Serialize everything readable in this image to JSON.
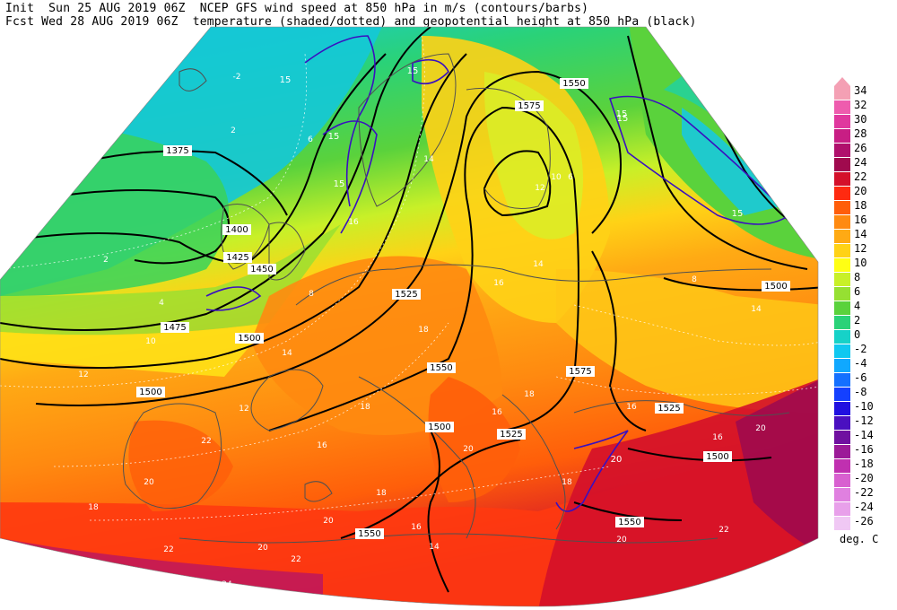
{
  "header": {
    "line1": "Init  Sun 25 AUG 2019 06Z  NCEP GFS wind speed at 850 hPa in m/s (contours/barbs)",
    "line2": "Fcst Wed 28 AUG 2019 06Z  temperature (shaded/dotted) and geopotential height at 850 hPa (black)"
  },
  "legend": {
    "units": "deg. C",
    "levels": [
      {
        "v": "34",
        "c": "#f4a0b4"
      },
      {
        "v": "32",
        "c": "#ee5cae"
      },
      {
        "v": "30",
        "c": "#e0389e"
      },
      {
        "v": "28",
        "c": "#c81e84"
      },
      {
        "v": "26",
        "c": "#b0106c"
      },
      {
        "v": "24",
        "c": "#a00a4e"
      },
      {
        "v": "22",
        "c": "#d4102a"
      },
      {
        "v": "20",
        "c": "#ff2a10"
      },
      {
        "v": "18",
        "c": "#ff5e0a"
      },
      {
        "v": "16",
        "c": "#ff8a10"
      },
      {
        "v": "14",
        "c": "#ffaa14"
      },
      {
        "v": "12",
        "c": "#ffd216"
      },
      {
        "v": "10",
        "c": "#ffff14"
      },
      {
        "v": "8",
        "c": "#c8f028"
      },
      {
        "v": "6",
        "c": "#96e032"
      },
      {
        "v": "4",
        "c": "#5ad23c"
      },
      {
        "v": "2",
        "c": "#2ad278"
      },
      {
        "v": "0",
        "c": "#16d2c8"
      },
      {
        "v": "-2",
        "c": "#10c8f0"
      },
      {
        "v": "-4",
        "c": "#10a8ff"
      },
      {
        "v": "-6",
        "c": "#1470ff"
      },
      {
        "v": "-8",
        "c": "#1440ff"
      },
      {
        "v": "-10",
        "c": "#2010e0"
      },
      {
        "v": "-12",
        "c": "#4a10c0"
      },
      {
        "v": "-14",
        "c": "#7010a0"
      },
      {
        "v": "-16",
        "c": "#9c1a98"
      },
      {
        "v": "-18",
        "c": "#c030b0"
      },
      {
        "v": "-20",
        "c": "#d860d0"
      },
      {
        "v": "-22",
        "c": "#e080e0"
      },
      {
        "v": "-24",
        "c": "#e8a0ea"
      },
      {
        "v": "-26",
        "c": "#f0c8f4"
      }
    ]
  },
  "map_labels": {
    "height": [
      "1375",
      "1450",
      "1475",
      "1500",
      "1525",
      "1550",
      "1575",
      "1400",
      "1425",
      "1550",
      "1575",
      "1500",
      "1525",
      "1500",
      "1550",
      "1525",
      "1550",
      "1500",
      "1550",
      "1500"
    ],
    "wind": [
      "15",
      "15",
      "15",
      "15",
      "15",
      "15",
      "15",
      "20"
    ],
    "temp": [
      "-2",
      "2",
      "2",
      "4",
      "6",
      "8",
      "10",
      "12",
      "14",
      "16",
      "14",
      "16",
      "18",
      "16",
      "14",
      "12",
      "10",
      "6",
      "8",
      "14",
      "16",
      "18",
      "20",
      "18",
      "16",
      "18",
      "20",
      "22",
      "20",
      "22",
      "20",
      "18",
      "16",
      "14",
      "12",
      "16",
      "18",
      "20",
      "22",
      "20",
      "24",
      "22"
    ]
  }
}
